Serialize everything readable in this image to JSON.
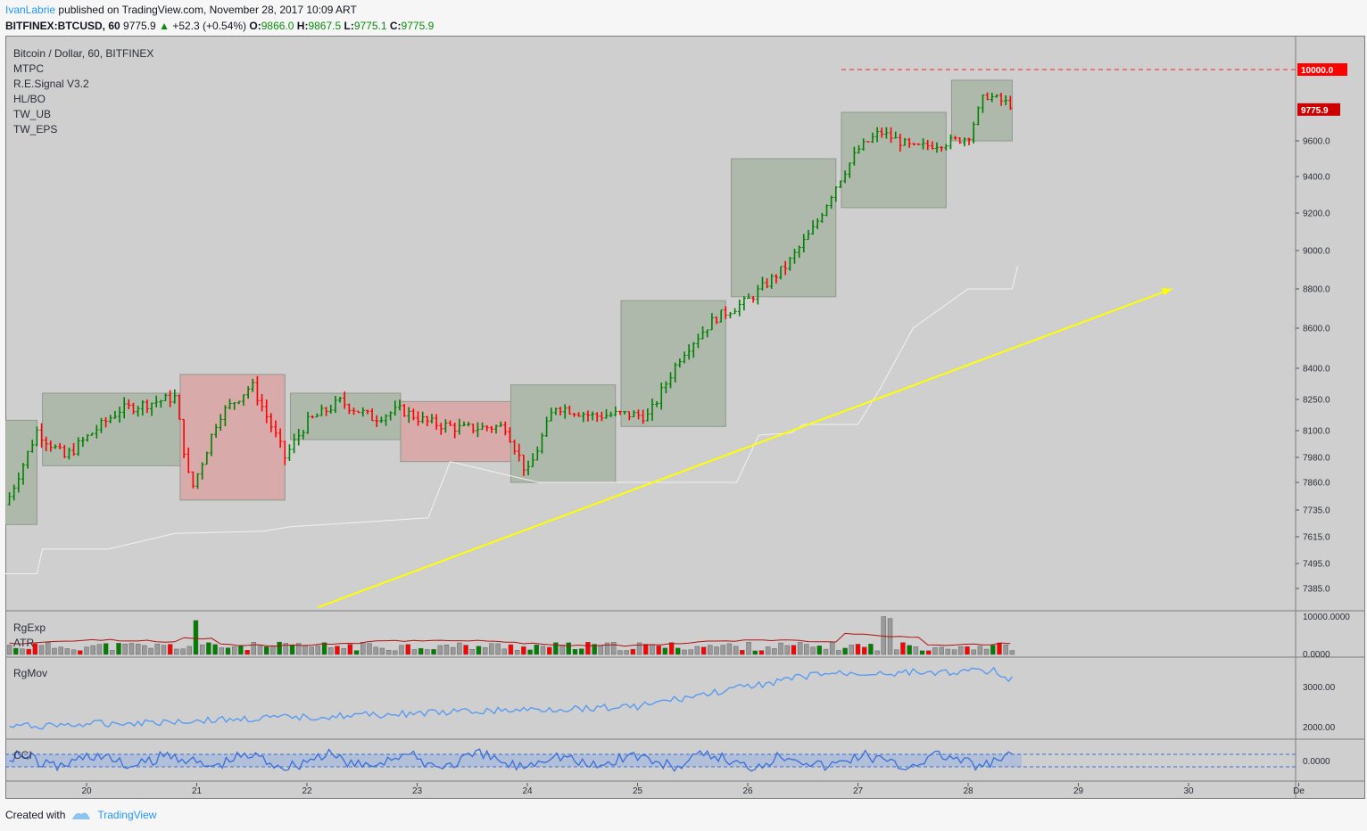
{
  "header": {
    "author": "IvanLabrie",
    "published": "published on TradingView.com, November 28, 2017 10:09 ART",
    "symbol": "BITFINEX:BTCUSD, 60",
    "last": "9775.9",
    "change": "+52.3 (+0.54%)",
    "o_label": "O:",
    "o_val": "9866.0",
    "h_label": "H:",
    "h_val": "9867.5",
    "l_label": "L:",
    "l_val": "9775.1",
    "c_label": "C:",
    "c_val": "9775.9"
  },
  "legend": {
    "title": "Bitcoin / Dollar, 60, BITFINEX",
    "indicators": [
      "MTPC",
      "R.E.Signal V3.2",
      "HL/BO",
      "TW_UB",
      "TW_EPS"
    ]
  },
  "panes": {
    "vol_labels": [
      "RgExp",
      "ATR"
    ],
    "mov_label": "RgMov",
    "cci_label": "CCI"
  },
  "footer": {
    "created": "Created with",
    "brand": "TradingView"
  },
  "chart_data": {
    "type": "candlestick",
    "price_axis_ticks": [
      9600.0,
      9400.0,
      9200.0,
      9000.0,
      8800.0,
      8600.0,
      8400.0,
      8250.0,
      8100.0,
      7980.0,
      7860.0,
      7735.0,
      7615.0,
      7495.0,
      7385.0
    ],
    "price_axis_labels": [
      "9600.0",
      "9400.0",
      "9200.0",
      "9000.0",
      "8800.0",
      "8600.0",
      "8400.0",
      "8250.0",
      "8100.0",
      "7980.0",
      "7860.0",
      "7735.0",
      "7615.0",
      "7495.0",
      "7385.0"
    ],
    "price_badges": [
      {
        "value": 10000.0,
        "label": "10000.0",
        "color": "#ff0000"
      },
      {
        "value": 9775.9,
        "label": "9775.9",
        "color": "#cc0000"
      }
    ],
    "resistance_line": 10000.0,
    "x_tick_labels": [
      "20",
      "21",
      "22",
      "23",
      "24",
      "25",
      "26",
      "27",
      "28",
      "29",
      "30",
      "De"
    ],
    "vol_axis_labels": [
      "10000.0000",
      "0.0000"
    ],
    "mov_axis_labels": [
      "3000.00",
      "2000.00"
    ],
    "cci_axis_labels": [
      "0.0000"
    ],
    "colors": {
      "up": "#008000",
      "down": "#ff0000",
      "neutral": "#222222",
      "box_green": "#a8b5a4",
      "box_red": "#d9a3a3",
      "trend": "#ffff00",
      "rgmov": "#5b9bf0",
      "cci": "#3a6fd8",
      "atr": "#b01010"
    },
    "boxes": [
      {
        "x0": 19.25,
        "x1": 19.55,
        "p_hi": 8150,
        "p_lo": 7670,
        "color": "green"
      },
      {
        "x0": 19.6,
        "x1": 20.85,
        "p_hi": 8280,
        "p_lo": 7940,
        "color": "green"
      },
      {
        "x0": 20.85,
        "x1": 21.8,
        "p_hi": 8370,
        "p_lo": 7780,
        "color": "red"
      },
      {
        "x0": 21.85,
        "x1": 22.85,
        "p_hi": 8280,
        "p_lo": 8060,
        "color": "green"
      },
      {
        "x0": 22.85,
        "x1": 23.85,
        "p_hi": 8240,
        "p_lo": 7960,
        "color": "red"
      },
      {
        "x0": 23.85,
        "x1": 24.8,
        "p_hi": 8320,
        "p_lo": 7860,
        "color": "green"
      },
      {
        "x0": 24.85,
        "x1": 25.8,
        "p_hi": 8740,
        "p_lo": 8120,
        "color": "green"
      },
      {
        "x0": 25.85,
        "x1": 26.8,
        "p_hi": 9500,
        "p_lo": 8760,
        "color": "green"
      },
      {
        "x0": 26.85,
        "x1": 27.8,
        "p_hi": 9760,
        "p_lo": 9230,
        "color": "green"
      },
      {
        "x0": 27.85,
        "x1": 28.4,
        "p_hi": 9940,
        "p_lo": 9600,
        "color": "green"
      }
    ],
    "trend_line": {
      "x0": 22.1,
      "p0": 7310,
      "x1": 29.85,
      "p1": 8800
    },
    "note": ""
  }
}
